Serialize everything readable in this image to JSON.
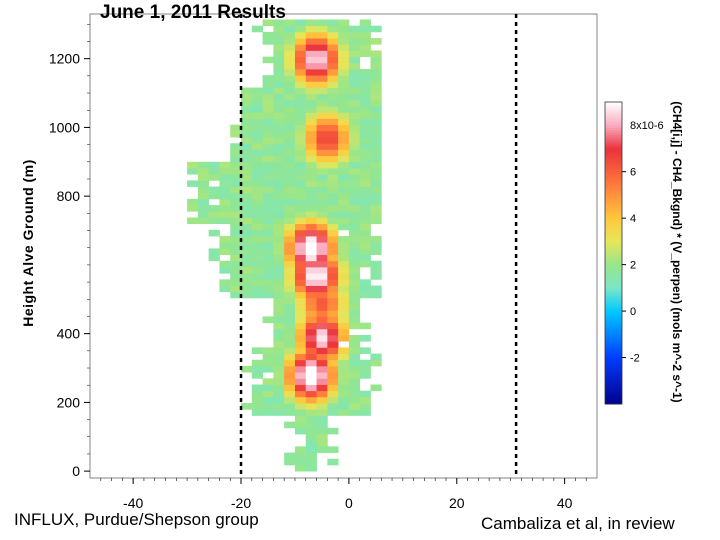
{
  "title": "June 1, 2011 Results",
  "credits": {
    "left": "INFLUX, Purdue/Shepson group",
    "right": "Cambaliza et al, in review"
  },
  "chart_data": {
    "type": "heatmap",
    "title": "June 1, 2011 Results",
    "xlabel": "",
    "ylabel": "Height Alve Ground (m)",
    "xlim": [
      -48,
      46
    ],
    "ylim": [
      -20,
      1330
    ],
    "x_ticks": [
      -40,
      -20,
      0,
      20,
      40
    ],
    "y_ticks": [
      0,
      200,
      400,
      800,
      1000,
      1200
    ],
    "vertical_lines": [
      -20,
      31
    ],
    "colorbar": {
      "label": "(CH4[i,j] - CH4_Bkgnd) * (V_perpen) (mols m^-2 s^-1)",
      "scale_label": "8x10-6",
      "range": [
        -4,
        9
      ],
      "ticks": [
        -2,
        0,
        2,
        4,
        6
      ]
    },
    "hotspots": [
      {
        "x": -7,
        "y": 1190,
        "value": 7.5
      },
      {
        "x": -5,
        "y": 960,
        "value": 5.5
      },
      {
        "x": -8,
        "y": 640,
        "value": 8.5
      },
      {
        "x": -7,
        "y": 560,
        "value": 8.0
      },
      {
        "x": -6,
        "y": 380,
        "value": 7.5
      },
      {
        "x": -8,
        "y": 270,
        "value": 8.5
      },
      {
        "x": -6,
        "y": 480,
        "value": 5.0
      }
    ]
  }
}
